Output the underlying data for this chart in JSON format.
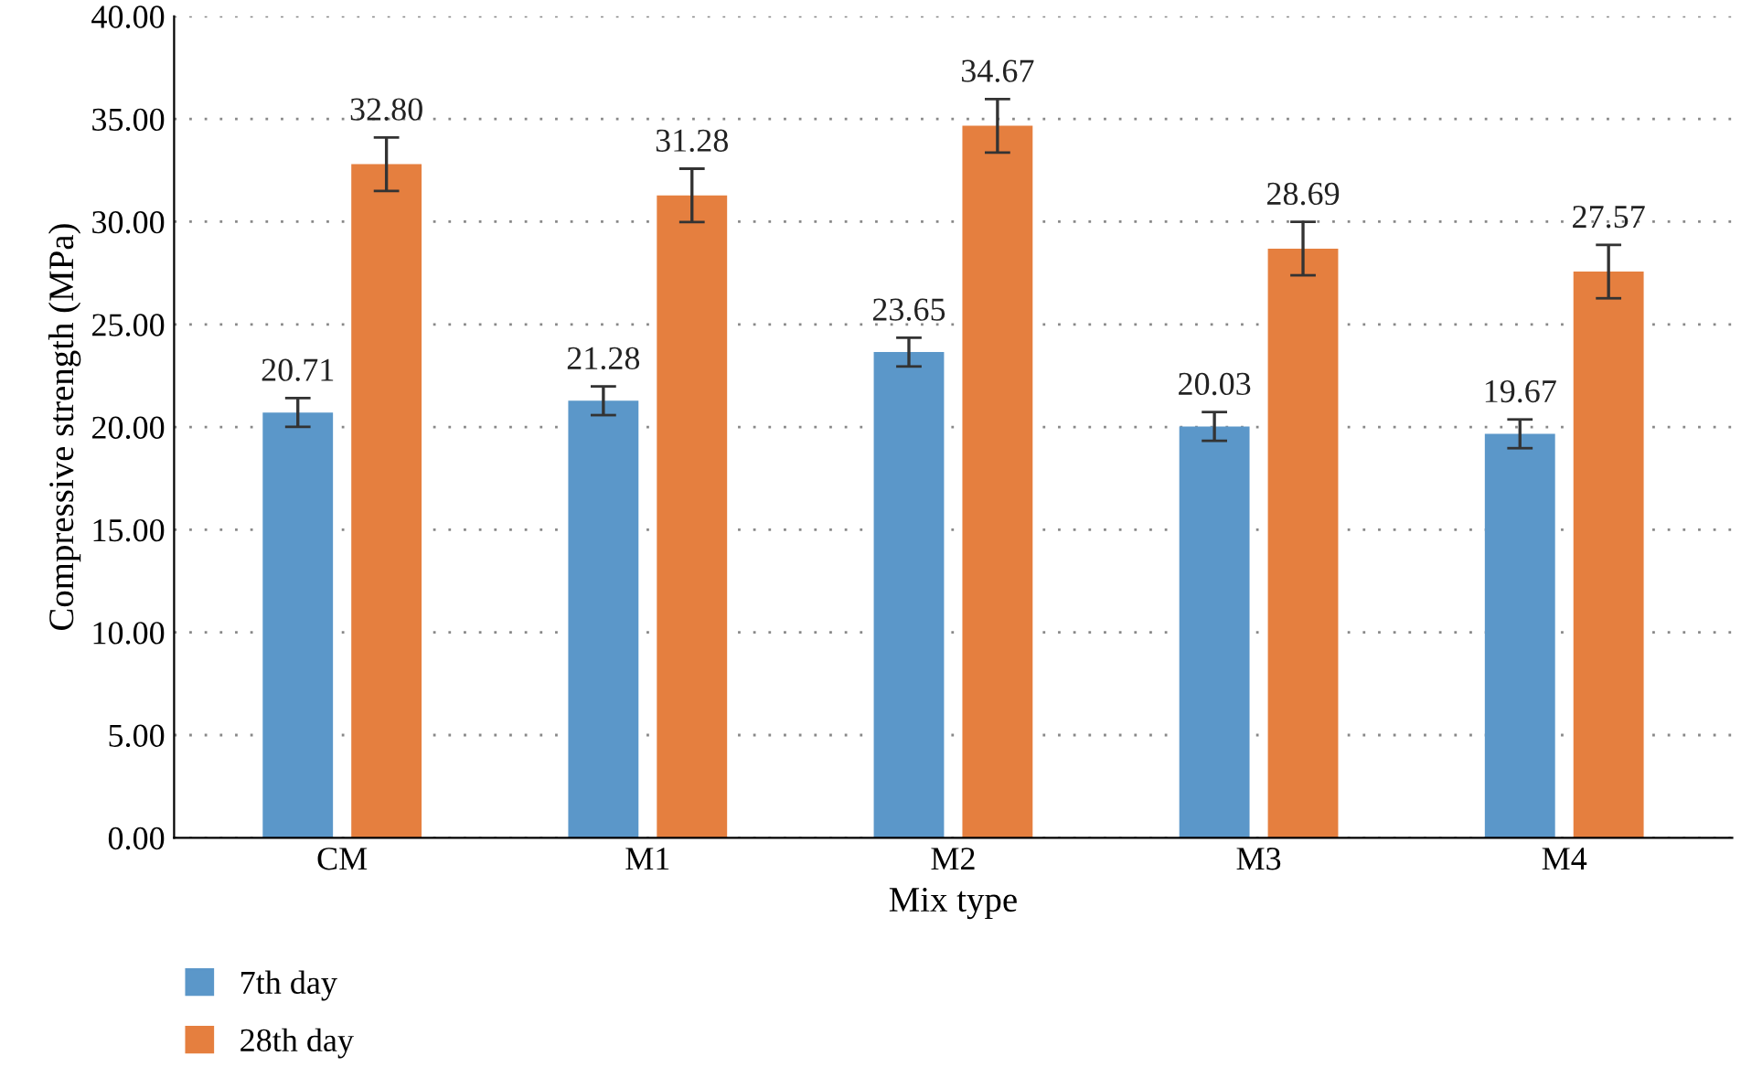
{
  "chart_data": {
    "type": "bar",
    "xlabel": "Mix type",
    "ylabel": "Compressive strength (MPa)",
    "categories": [
      "CM",
      "M1",
      "M2",
      "M3",
      "M4"
    ],
    "series": [
      {
        "name": "7th day",
        "color": "#5b97c9",
        "values": [
          20.71,
          21.28,
          23.65,
          20.03,
          19.67
        ],
        "value_labels": [
          "20.71",
          "21.28",
          "23.65",
          "20.03",
          "19.67"
        ],
        "errors": [
          0.7,
          0.7,
          0.7,
          0.7,
          0.7
        ]
      },
      {
        "name": "28th day",
        "color": "#e57f3f",
        "values": [
          32.8,
          31.28,
          34.67,
          28.69,
          27.57
        ],
        "value_labels": [
          "32.80",
          "31.28",
          "34.67",
          "28.69",
          "27.57"
        ],
        "errors": [
          1.3,
          1.3,
          1.3,
          1.3,
          1.3
        ]
      }
    ],
    "ylim": [
      0,
      40
    ],
    "yticks": [
      {
        "value": 0,
        "label": "0.00"
      },
      {
        "value": 5,
        "label": "5.00"
      },
      {
        "value": 10,
        "label": "10.00"
      },
      {
        "value": 15,
        "label": "15.00"
      },
      {
        "value": 20,
        "label": "20.00"
      },
      {
        "value": 25,
        "label": "25.00"
      },
      {
        "value": 30,
        "label": "30.00"
      },
      {
        "value": 35,
        "label": "35.00"
      },
      {
        "value": 40,
        "label": "40.00"
      }
    ],
    "grid": "y",
    "legend": "bottom left"
  }
}
